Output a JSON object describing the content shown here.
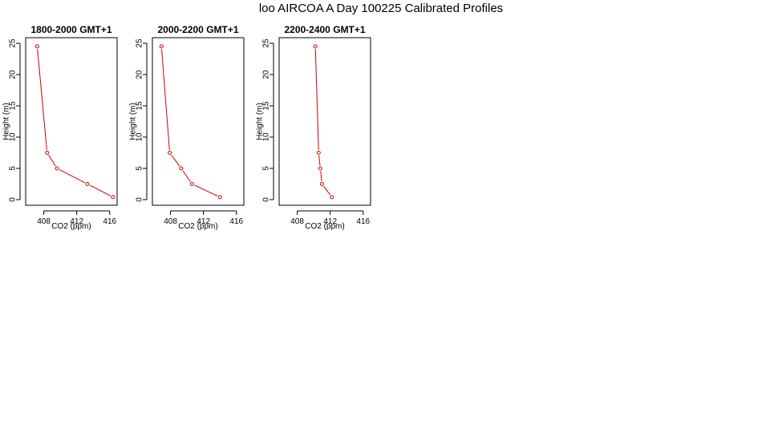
{
  "title": "loo AIRCOA A  Day 100225  Calibrated Profiles",
  "colors": {
    "series": "#cc0000",
    "axis": "#000000"
  },
  "chart_data": [
    {
      "type": "line",
      "title": "1800-2000 GMT+1",
      "xlabel": "CO2 (ppm)",
      "ylabel": "Height (m)",
      "xlim": [
        405.8,
        416.9
      ],
      "ylim": [
        -0.9,
        25.9
      ],
      "xticks": [
        "408",
        "412",
        "416"
      ],
      "yticks": [
        "0",
        "5",
        "10",
        "15",
        "20",
        "25"
      ],
      "grid": false,
      "series": [
        {
          "x": [
            407.2,
            408.4,
            409.6,
            413.3,
            416.4
          ],
          "y": [
            24.5,
            7.5,
            5.0,
            2.5,
            0.4
          ]
        }
      ]
    },
    {
      "type": "line",
      "title": "2000-2200 GMT+1",
      "xlabel": "CO2 (ppm)",
      "ylabel": "Height (m)",
      "xlim": [
        405.8,
        416.9
      ],
      "ylim": [
        -0.9,
        25.9
      ],
      "xticks": [
        "408",
        "412",
        "416"
      ],
      "yticks": [
        "0",
        "5",
        "10",
        "15",
        "20",
        "25"
      ],
      "grid": false,
      "series": [
        {
          "x": [
            406.9,
            407.9,
            409.3,
            410.6,
            414.0
          ],
          "y": [
            24.5,
            7.5,
            5.0,
            2.5,
            0.4
          ]
        }
      ]
    },
    {
      "type": "line",
      "title": "2200-2400 GMT+1",
      "xlabel": "CO2 (ppm)",
      "ylabel": "Height (m)",
      "xlim": [
        405.8,
        416.9
      ],
      "ylim": [
        -0.9,
        25.9
      ],
      "xticks": [
        "408",
        "412",
        "416"
      ],
      "yticks": [
        "0",
        "5",
        "10",
        "15",
        "20",
        "25"
      ],
      "grid": false,
      "series": [
        {
          "x": [
            410.2,
            410.6,
            410.8,
            411.0,
            412.2
          ],
          "y": [
            24.5,
            7.5,
            5.0,
            2.5,
            0.4
          ]
        }
      ]
    }
  ]
}
